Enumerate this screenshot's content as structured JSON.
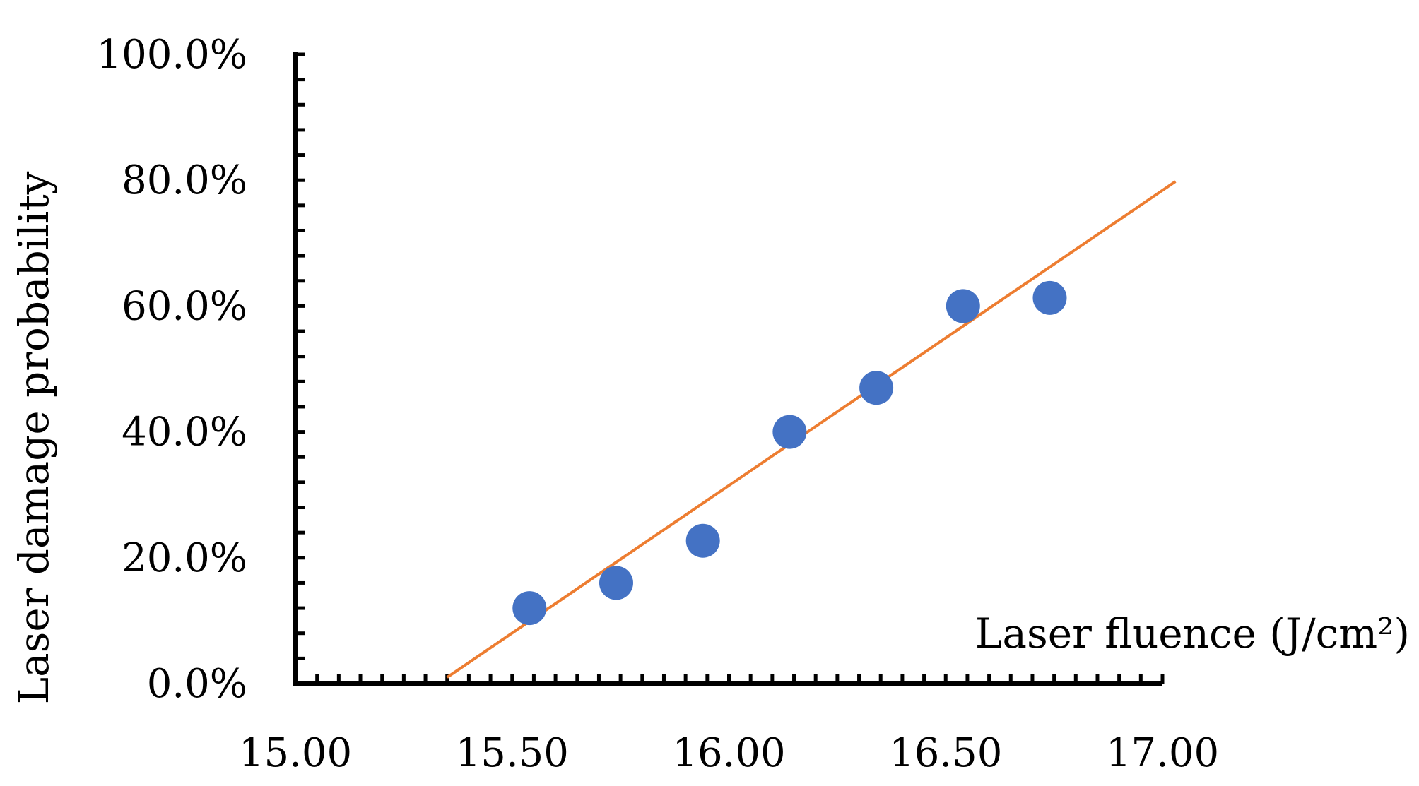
{
  "chart_data": {
    "type": "scatter",
    "title": "",
    "xlabel": "Laser fluence (J/cm²)",
    "ylabel": "Laser damage probability",
    "xlim": [
      15.0,
      17.0
    ],
    "ylim": [
      0.0,
      100.0
    ],
    "x_ticks": [
      "15.00",
      "15.50",
      "16.00",
      "16.50",
      "17.00"
    ],
    "y_ticks": [
      "0.0%",
      "20.0%",
      "40.0%",
      "60.0%",
      "80.0%",
      "100.0%"
    ],
    "grid": false,
    "legend": "none",
    "series": [
      {
        "color": "#4472C4",
        "points": [
          {
            "x": 15.54,
            "y": 12.0
          },
          {
            "x": 15.74,
            "y": 16.0
          },
          {
            "x": 15.94,
            "y": 22.7
          },
          {
            "x": 16.14,
            "y": 40.0
          },
          {
            "x": 16.34,
            "y": 47.0
          },
          {
            "x": 16.54,
            "y": 60.0
          },
          {
            "x": 16.74,
            "y": 61.3
          }
        ]
      }
    ],
    "trendline": {
      "type": "linear",
      "color": "#ED7D31",
      "from": {
        "x": 15.35,
        "y": 1.0
      },
      "to": {
        "x": 17.03,
        "y": 79.8
      }
    }
  }
}
